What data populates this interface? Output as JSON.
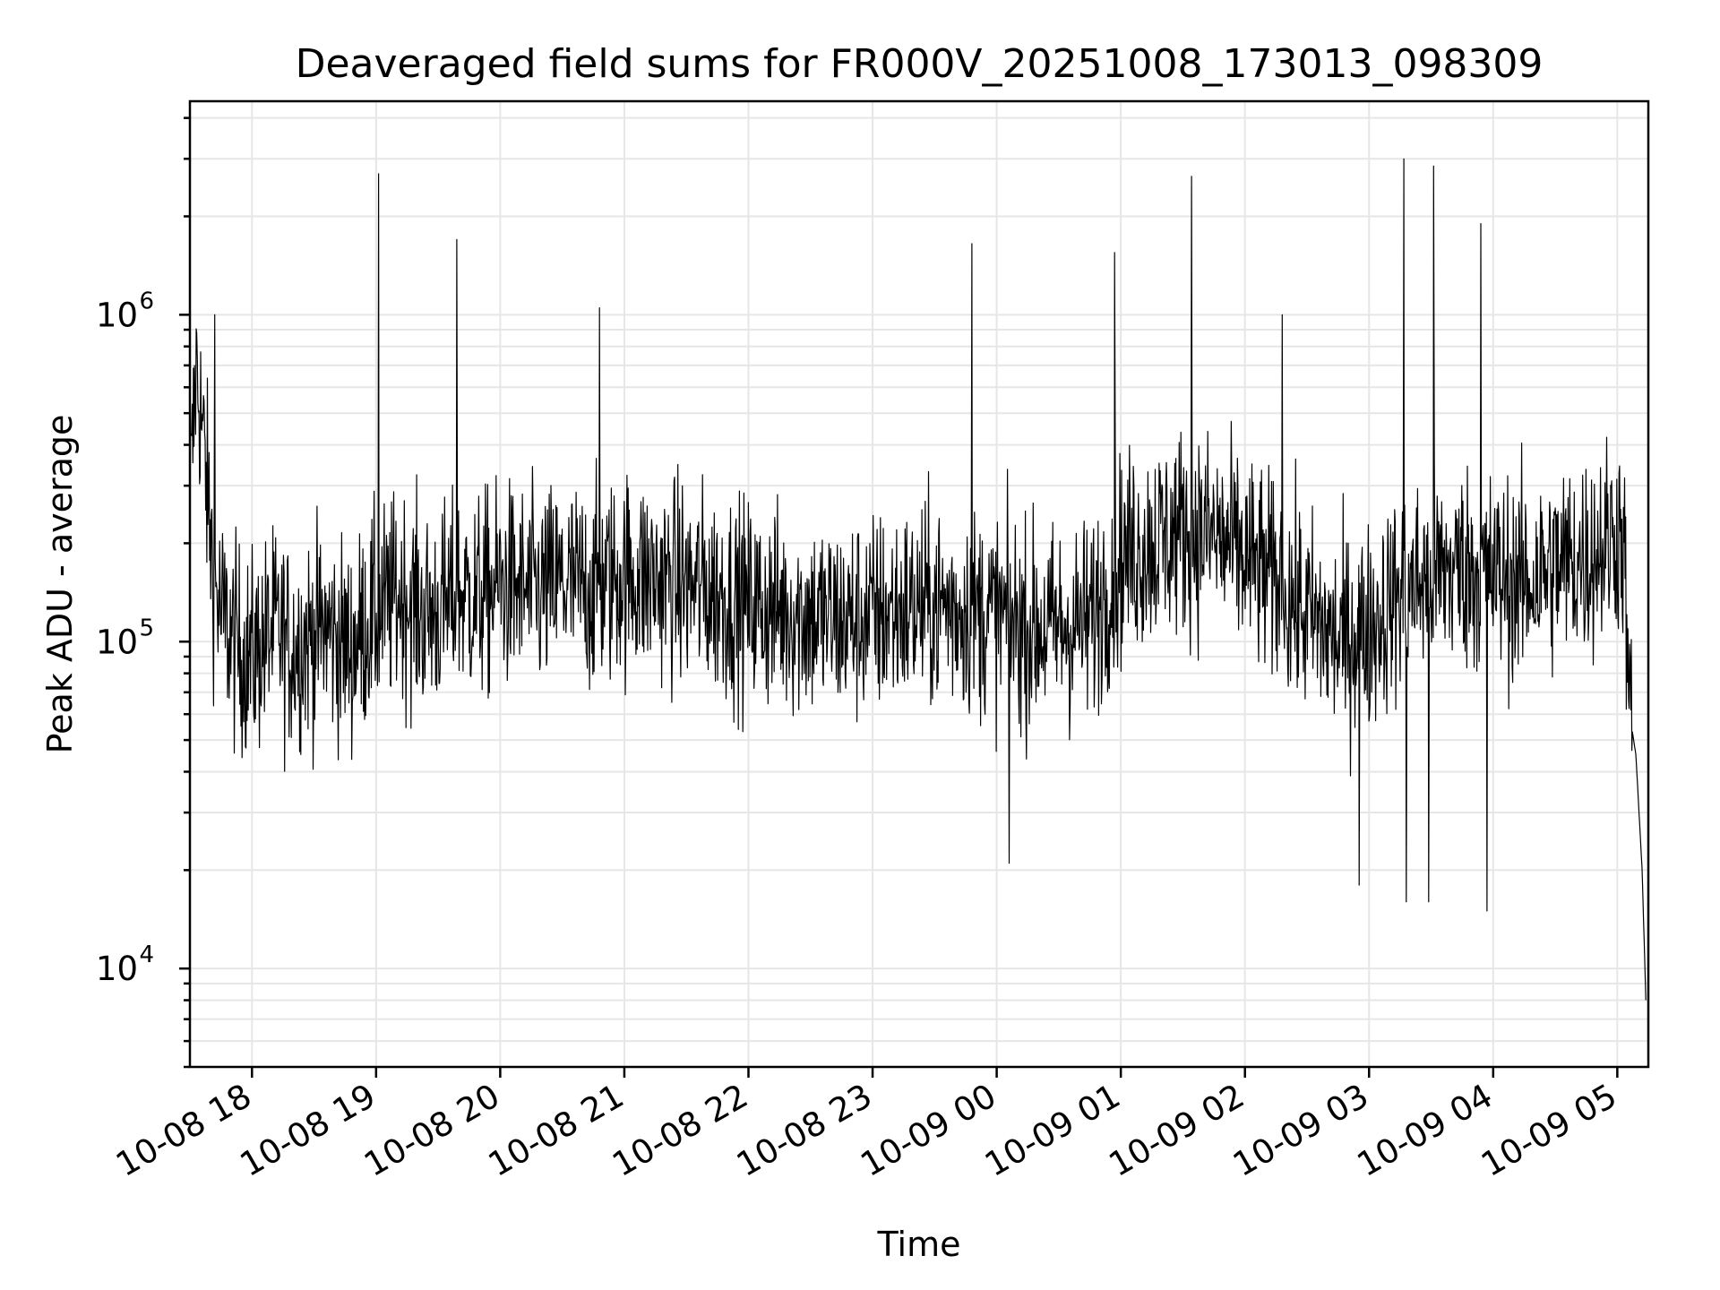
{
  "chart_data": {
    "type": "line",
    "title": "Deaveraged field sums for FR000V_20251008_173013_098309",
    "xlabel": "Time",
    "ylabel": "Peak ADU - average",
    "yscale": "log",
    "ylim": [
      5000,
      4500000
    ],
    "xlim_hours": [
      -0.5,
      11.25
    ],
    "grid": true,
    "x_ticks": [
      {
        "hour": 0,
        "label": "10-08 18"
      },
      {
        "hour": 1,
        "label": "10-08 19"
      },
      {
        "hour": 2,
        "label": "10-08 20"
      },
      {
        "hour": 3,
        "label": "10-08 21"
      },
      {
        "hour": 4,
        "label": "10-08 22"
      },
      {
        "hour": 5,
        "label": "10-08 23"
      },
      {
        "hour": 6,
        "label": "10-09 00"
      },
      {
        "hour": 7,
        "label": "10-09 01"
      },
      {
        "hour": 8,
        "label": "10-09 02"
      },
      {
        "hour": 9,
        "label": "10-09 03"
      },
      {
        "hour": 10,
        "label": "10-09 04"
      },
      {
        "hour": 11,
        "label": "10-09 05"
      }
    ],
    "y_ticks": [
      {
        "value": 10000,
        "base": "10",
        "exp": "4"
      },
      {
        "value": 100000,
        "base": "10",
        "exp": "5"
      },
      {
        "value": 1000000,
        "base": "10",
        "exp": "6"
      }
    ],
    "series": [
      {
        "name": "Peak ADU - average",
        "color": "#000000",
        "x_hours": [
          -0.49,
          -0.45,
          -0.4,
          -0.35,
          -0.3,
          -0.25,
          -0.2,
          -0.15,
          -0.1,
          -0.05,
          0.0,
          0.1,
          0.2,
          0.3,
          0.4,
          0.5,
          0.6,
          0.7,
          0.8,
          0.9,
          1.0,
          1.1,
          1.2,
          1.3,
          1.4,
          1.5,
          1.6,
          1.7,
          1.8,
          1.9,
          2.0,
          2.25,
          2.5,
          2.75,
          3.0,
          3.25,
          3.5,
          3.75,
          4.0,
          4.25,
          4.5,
          4.75,
          5.0,
          5.25,
          5.5,
          5.75,
          6.0,
          6.25,
          6.5,
          6.75,
          7.0,
          7.25,
          7.5,
          7.75,
          8.0,
          8.25,
          8.5,
          8.75,
          9.0,
          9.25,
          9.5,
          9.75,
          10.0,
          10.25,
          10.5,
          10.75,
          10.9,
          11.0,
          11.05,
          11.1,
          11.15,
          11.2,
          11.23
        ],
        "values": [
          300000,
          700000,
          450000,
          250000,
          150000,
          120000,
          110000,
          100000,
          95000,
          90000,
          90000,
          100000,
          110000,
          95000,
          100000,
          105000,
          110000,
          100000,
          95000,
          110000,
          120000,
          130000,
          140000,
          130000,
          120000,
          125000,
          130000,
          140000,
          135000,
          140000,
          150000,
          140000,
          150000,
          145000,
          160000,
          155000,
          150000,
          140000,
          130000,
          125000,
          120000,
          115000,
          120000,
          125000,
          130000,
          125000,
          120000,
          110000,
          110000,
          115000,
          180000,
          200000,
          220000,
          210000,
          180000,
          150000,
          120000,
          100000,
          110000,
          140000,
          160000,
          170000,
          160000,
          150000,
          170000,
          180000,
          200000,
          220000,
          200000,
          60000,
          45000,
          20000,
          8000
        ],
        "spikes": [
          {
            "hour": -0.3,
            "value": 1000000
          },
          {
            "hour": 1.02,
            "value": 2700000
          },
          {
            "hour": 1.65,
            "value": 1700000
          },
          {
            "hour": 2.8,
            "value": 1050000
          },
          {
            "hour": 5.8,
            "value": 1650000
          },
          {
            "hour": 6.95,
            "value": 1550000
          },
          {
            "hour": 7.57,
            "value": 2650000
          },
          {
            "hour": 8.3,
            "value": 1000000
          },
          {
            "hour": 9.28,
            "value": 3000000
          },
          {
            "hour": 9.52,
            "value": 2850000
          },
          {
            "hour": 9.9,
            "value": 1900000
          },
          {
            "hour": 8.92,
            "value": 18000
          },
          {
            "hour": 9.3,
            "value": 16000
          },
          {
            "hour": 9.48,
            "value": 16000
          },
          {
            "hour": 9.95,
            "value": 15000
          },
          {
            "hour": 6.1,
            "value": 21000
          }
        ]
      }
    ]
  }
}
